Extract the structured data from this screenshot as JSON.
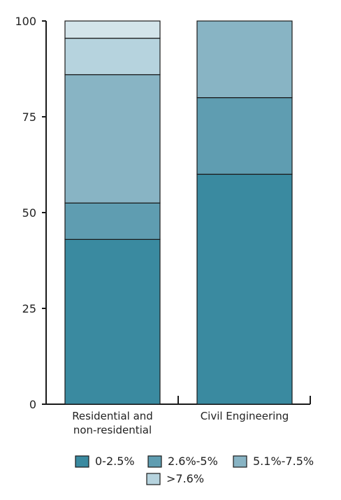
{
  "chart_data": {
    "type": "bar",
    "stacked": true,
    "categories": [
      [
        "Residential and",
        "non-residential"
      ],
      [
        "Civil Engineering"
      ]
    ],
    "series": [
      {
        "name": "0-2.5%",
        "color": "#3a8aa0",
        "values": [
          43,
          60
        ]
      },
      {
        "name": "2.6%-5%",
        "color": "#5f9db1",
        "values": [
          9.5,
          20
        ]
      },
      {
        "name": "5.1%-7.5%",
        "color": "#88b4c4",
        "values": [
          33.5,
          20
        ]
      },
      {
        "name": ">7.6%",
        "color": "#b6d3de",
        "values": [
          9.5,
          0
        ]
      },
      {
        "name": "",
        "color": "#d3e4ea",
        "values": [
          4.5,
          0
        ]
      }
    ],
    "yticks": [
      0,
      25,
      50,
      75,
      100
    ],
    "ylim": [
      0,
      100
    ],
    "title": "",
    "xlabel": "",
    "ylabel": "",
    "grid": false,
    "legend_position": "bottom"
  }
}
